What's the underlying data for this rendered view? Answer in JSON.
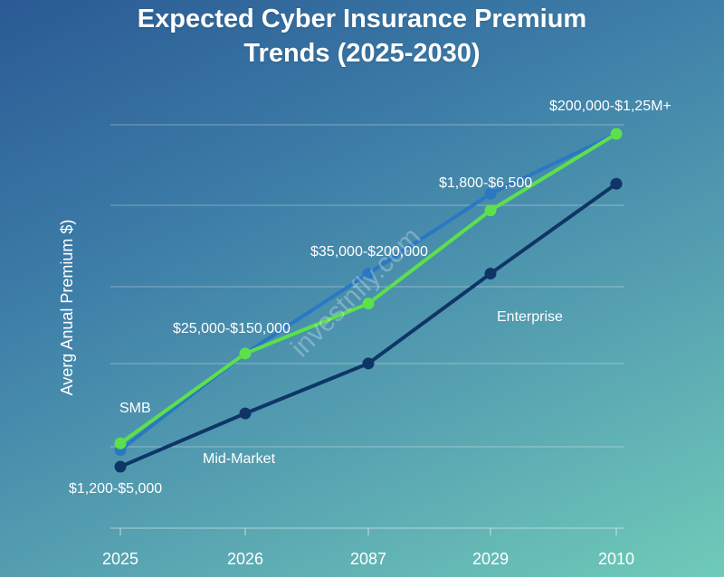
{
  "chart_data": {
    "type": "line",
    "title_line1": "Expected Cyber Insurance Premium",
    "title_line2": "Trends (2025-2030)",
    "ylabel": "Averg Anual Premium $)",
    "categories": [
      "2025",
      "2026",
      "2087",
      "2029",
      "2010"
    ],
    "grid": true,
    "series": [
      {
        "key": "top",
        "color": "#2b78c2",
        "values": [
          0.05,
          0.34,
          0.58,
          0.82,
          1.0
        ]
      },
      {
        "key": "bright",
        "color": "#5ce04c",
        "values": [
          0.07,
          0.34,
          0.49,
          0.77,
          1.0
        ]
      },
      {
        "key": "low",
        "color": "#0f3566",
        "values": [
          0.0,
          0.16,
          0.31,
          0.58,
          0.85
        ]
      }
    ],
    "annotations": {
      "smb": "SMB",
      "mid_market": "Mid-Market",
      "enterprise": "Enterprise",
      "range_1": "$1,200-$5,000",
      "range_2": "$25,000-$150,000",
      "range_3": "$35,000-$200,000",
      "range_4": "$1,800-$6,500",
      "range_5": "$200,000-$1,25M+"
    },
    "watermark": "investnfly.com"
  }
}
